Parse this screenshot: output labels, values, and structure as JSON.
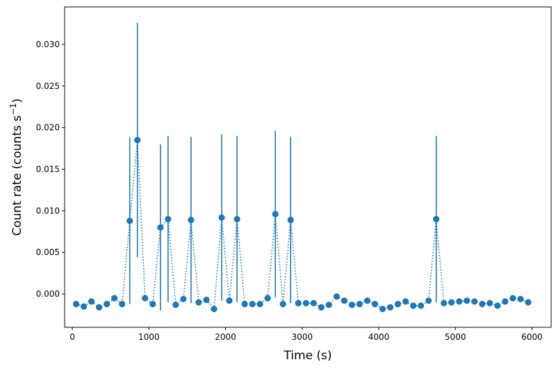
{
  "chart_data": {
    "type": "scatter",
    "xlabel": "Time (s)",
    "ylabel_base": "Count rate (counts s",
    "ylabel_sup": "−1",
    "ylabel_close": ")",
    "xlim": [
      -100,
      6250
    ],
    "ylim": [
      -0.004,
      0.0345
    ],
    "xticks": [
      0,
      1000,
      2000,
      3000,
      4000,
      5000,
      6000
    ],
    "xtick_labels": [
      "0",
      "1000",
      "2000",
      "3000",
      "4000",
      "5000",
      "6000"
    ],
    "yticks": [
      0.0,
      0.005,
      0.01,
      0.015,
      0.02,
      0.025,
      0.03
    ],
    "ytick_labels": [
      "0.000",
      "0.005",
      "0.010",
      "0.015",
      "0.020",
      "0.025",
      "0.030"
    ],
    "color": "#1f77b4",
    "line_style": "dotted",
    "grid": false,
    "legend": "none",
    "series": [
      {
        "x": [
          50,
          150,
          250,
          350,
          450,
          550,
          650,
          750,
          850,
          950,
          1050,
          1150,
          1250,
          1350,
          1450,
          1550,
          1650,
          1750,
          1850,
          1950,
          2050,
          2150,
          2250,
          2350,
          2450,
          2550,
          2650,
          2750,
          2850,
          2950,
          3050,
          3150,
          3250,
          3350,
          3450,
          3550,
          3650,
          3750,
          3850,
          3950,
          4050,
          4150,
          4250,
          4350,
          4450,
          4550,
          4650,
          4750,
          4850,
          4950,
          5050,
          5150,
          5250,
          5350,
          5450,
          5550,
          5650,
          5750,
          5850,
          5950
        ],
        "y": [
          -0.0012,
          -0.0015,
          -0.0009,
          -0.0016,
          -0.0012,
          -0.0005,
          -0.0012,
          0.0088,
          0.0185,
          -0.0005,
          -0.0012,
          0.008,
          0.009,
          -0.0013,
          -0.0006,
          0.0089,
          -0.001,
          -0.0007,
          -0.0018,
          0.0092,
          -0.0008,
          0.009,
          -0.0012,
          -0.0012,
          -0.0012,
          -0.0005,
          0.0096,
          -0.0012,
          0.0089,
          -0.0011,
          -0.0011,
          -0.0011,
          -0.0016,
          -0.0013,
          -0.0003,
          -0.0008,
          -0.0013,
          -0.0012,
          -0.0008,
          -0.0012,
          -0.0018,
          -0.0016,
          -0.0012,
          -0.0009,
          -0.0014,
          -0.0014,
          -0.0008,
          0.009,
          -0.0011,
          -0.001,
          -0.0009,
          -0.0008,
          -0.0009,
          -0.0012,
          -0.0011,
          -0.0014,
          -0.0009,
          -0.0005,
          -0.0006,
          -0.001
        ],
        "err": [
          0,
          0,
          0,
          0,
          0,
          0,
          0,
          0.01,
          0.0141,
          0,
          0,
          0.01,
          0.01,
          0,
          0,
          0.01,
          0,
          0,
          0,
          0.01,
          0,
          0.01,
          0,
          0,
          0,
          0,
          0.01,
          0,
          0.01,
          0,
          0,
          0,
          0,
          0,
          0,
          0,
          0,
          0,
          0,
          0,
          0,
          0,
          0,
          0,
          0,
          0,
          0,
          0.01,
          0,
          0,
          0,
          0,
          0,
          0,
          0,
          0,
          0,
          0,
          0,
          0
        ]
      }
    ]
  }
}
